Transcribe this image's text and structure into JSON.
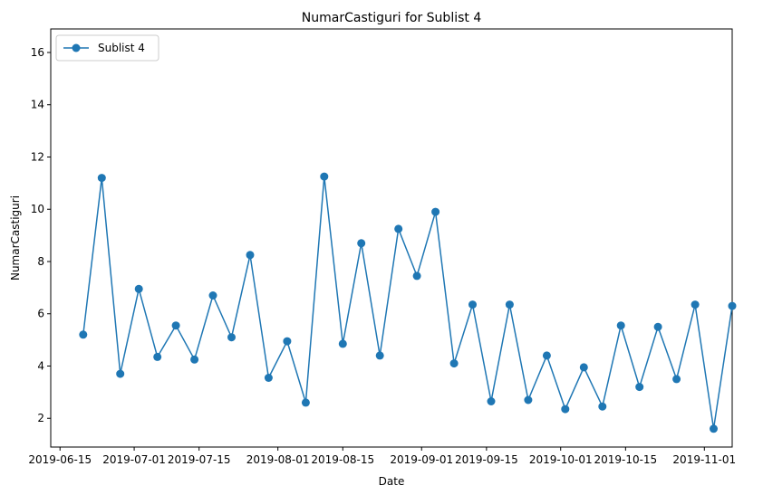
{
  "chart_data": {
    "type": "line",
    "title": "NumarCastiguri for Sublist 4",
    "xlabel": "Date",
    "ylabel": "NumarCastiguri",
    "x_axis_type": "date",
    "xlim": [
      "2019-06-13",
      "2019-11-07"
    ],
    "ylim": [
      0.9,
      16.9
    ],
    "x_ticks": [
      "2019-06-15",
      "2019-07-01",
      "2019-07-15",
      "2019-08-01",
      "2019-08-15",
      "2019-09-01",
      "2019-09-15",
      "2019-10-01",
      "2019-10-15",
      "2019-11-01"
    ],
    "y_ticks": [
      2,
      4,
      6,
      8,
      10,
      12,
      14,
      16
    ],
    "legend_position": "upper-left",
    "grid": false,
    "series": [
      {
        "name": "Sublist 4",
        "color": "#1f77b4",
        "marker": "circle",
        "x": [
          "2019-06-20",
          "2019-06-24",
          "2019-06-28",
          "2019-07-02",
          "2019-07-06",
          "2019-07-10",
          "2019-07-14",
          "2019-07-18",
          "2019-07-22",
          "2019-07-26",
          "2019-07-30",
          "2019-08-03",
          "2019-08-07",
          "2019-08-11",
          "2019-08-15",
          "2019-08-19",
          "2019-08-23",
          "2019-08-27",
          "2019-08-31",
          "2019-09-04",
          "2019-09-08",
          "2019-09-12",
          "2019-09-16",
          "2019-09-20",
          "2019-09-24",
          "2019-09-28",
          "2019-10-02",
          "2019-10-06",
          "2019-10-10",
          "2019-10-14",
          "2019-10-18",
          "2019-10-22",
          "2019-10-26",
          "2019-10-30",
          "2019-11-03",
          "2019-11-07"
        ],
        "values": [
          5.2,
          11.2,
          3.7,
          6.95,
          4.35,
          5.55,
          4.25,
          6.7,
          5.1,
          8.25,
          3.55,
          4.95,
          2.6,
          11.25,
          4.85,
          8.7,
          4.4,
          9.25,
          7.45,
          9.9,
          4.1,
          6.35,
          2.65,
          6.35,
          2.7,
          4.4,
          2.35,
          3.95,
          2.45,
          5.55,
          3.2,
          5.5,
          3.5,
          6.35,
          1.6,
          6.3
        ]
      }
    ]
  }
}
